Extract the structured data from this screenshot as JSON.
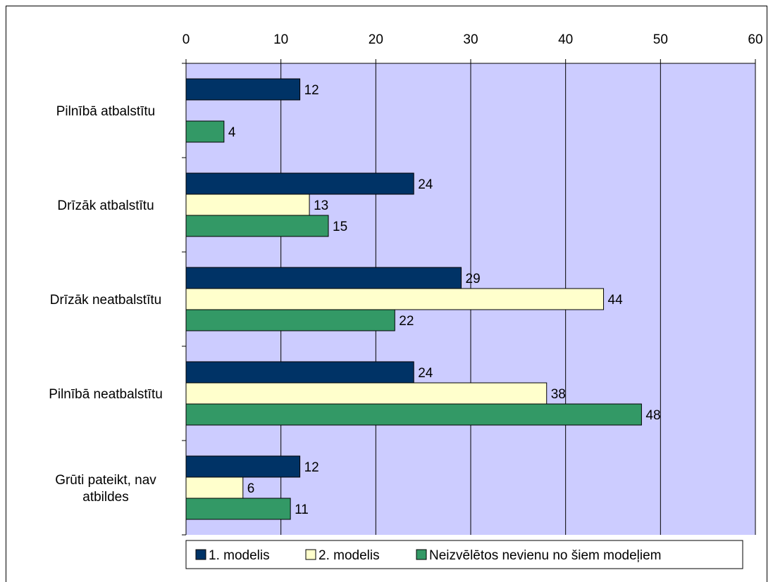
{
  "chart_data": {
    "type": "bar",
    "orientation": "horizontal",
    "categories": [
      "Pilnībā atbalstītu",
      "Drīzāk atbalstītu",
      "Drīzāk neatbalstītu",
      "Pilnībā neatbalstītu",
      "Grūti pateikt, nav atbildes"
    ],
    "series": [
      {
        "name": "1. modelis",
        "values": [
          12,
          24,
          29,
          24,
          12
        ],
        "color": "#003366"
      },
      {
        "name": "2. modelis",
        "values": [
          0,
          13,
          44,
          38,
          6
        ],
        "color": "#FFFFCC"
      },
      {
        "name": "Neizvēlētos nevienu no šiem modeļiem",
        "values": [
          4,
          15,
          22,
          48,
          11
        ],
        "color": "#339966"
      }
    ],
    "value_labels": [
      [
        "12",
        "24",
        "29",
        "24",
        "12"
      ],
      [
        "",
        "13",
        "44",
        "38",
        "6"
      ],
      [
        "4",
        "15",
        "22",
        "48",
        "11"
      ]
    ],
    "category_lines": [
      [
        "Pilnībā atbalstītu"
      ],
      [
        "Drīzāk atbalstītu"
      ],
      [
        "Drīzāk neatbalstītu"
      ],
      [
        "Pilnībā neatbalstītu"
      ],
      [
        "Grūti pateikt, nav",
        "atbildes"
      ]
    ],
    "xlim": [
      0,
      60
    ],
    "xticks": [
      0,
      10,
      20,
      30,
      40,
      50,
      60
    ],
    "x_axis_position": "top",
    "grid": true,
    "plot_background": "#CCCCFF",
    "legend_position": "bottom",
    "title": "",
    "xlabel": "",
    "ylabel": ""
  }
}
